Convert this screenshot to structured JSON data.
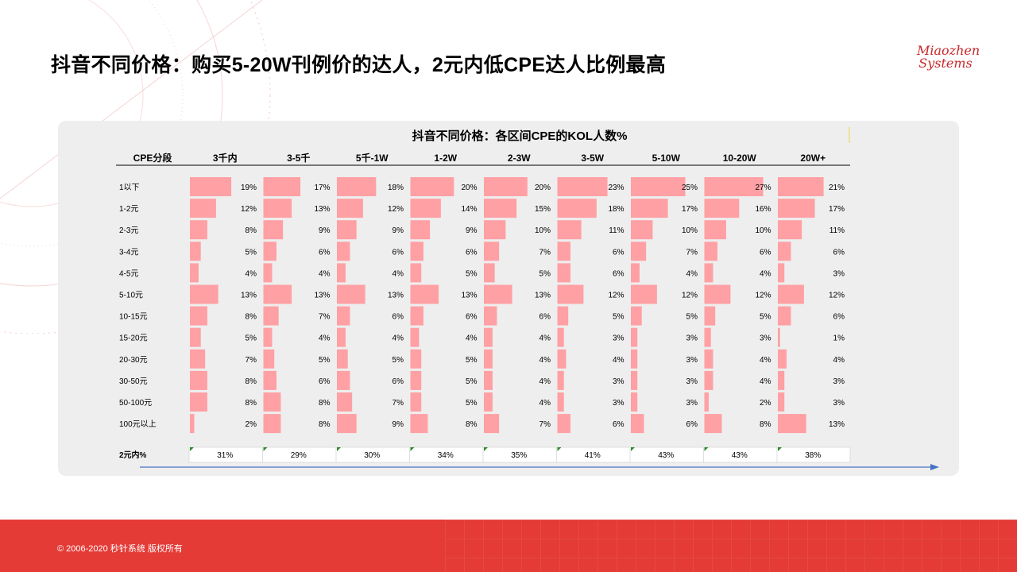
{
  "page": {
    "title": "抖音不同价格：购买5-20W刊例价的达人，2元内低CPE达人比例最高",
    "logo_line1": "Miaozhen",
    "logo_line2": "Systems",
    "footer": "© 2006-2020 秒针系统 版权所有",
    "accent": "#e43b37",
    "bar_color": "#ffa0a4",
    "arrow_color": "#4472c4"
  },
  "chart_data": {
    "type": "bar",
    "title": "抖音不同价格：各区间CPE的KOL人数%",
    "row_header": "CPE分段",
    "columns": [
      "3千内",
      "3-5千",
      "5千-1W",
      "1-2W",
      "2-3W",
      "3-5W",
      "5-10W",
      "10-20W",
      "20W+"
    ],
    "categories": [
      "1以下",
      "1-2元",
      "2-3元",
      "3-4元",
      "4-5元",
      "5-10元",
      "10-15元",
      "15-20元",
      "20-30元",
      "30-50元",
      "50-100元",
      "100元以上"
    ],
    "series": [
      {
        "name": "3千内",
        "values": [
          19,
          12,
          8,
          5,
          4,
          13,
          8,
          5,
          7,
          8,
          8,
          2
        ]
      },
      {
        "name": "3-5千",
        "values": [
          17,
          13,
          9,
          6,
          4,
          13,
          7,
          4,
          5,
          6,
          8,
          8
        ]
      },
      {
        "name": "5千-1W",
        "values": [
          18,
          12,
          9,
          6,
          4,
          13,
          6,
          4,
          5,
          6,
          7,
          9
        ]
      },
      {
        "name": "1-2W",
        "values": [
          20,
          14,
          9,
          6,
          5,
          13,
          6,
          4,
          5,
          5,
          5,
          8
        ]
      },
      {
        "name": "2-3W",
        "values": [
          20,
          15,
          10,
          7,
          5,
          13,
          6,
          4,
          4,
          4,
          4,
          7
        ]
      },
      {
        "name": "3-5W",
        "values": [
          23,
          18,
          11,
          6,
          6,
          12,
          5,
          3,
          4,
          3,
          3,
          6
        ]
      },
      {
        "name": "5-10W",
        "values": [
          25,
          17,
          10,
          7,
          4,
          12,
          5,
          3,
          3,
          3,
          3,
          6
        ]
      },
      {
        "name": "10-20W",
        "values": [
          27,
          16,
          10,
          6,
          4,
          12,
          5,
          3,
          4,
          4,
          2,
          8
        ]
      },
      {
        "name": "20W+",
        "values": [
          21,
          17,
          11,
          6,
          3,
          12,
          6,
          1,
          4,
          3,
          3,
          13
        ]
      }
    ],
    "summary_label": "2元内%",
    "summary": [
      "31%",
      "29%",
      "30%",
      "34%",
      "35%",
      "41%",
      "43%",
      "43%",
      "38%"
    ],
    "value_suffix": "%",
    "xlim": [
      0,
      27
    ]
  }
}
